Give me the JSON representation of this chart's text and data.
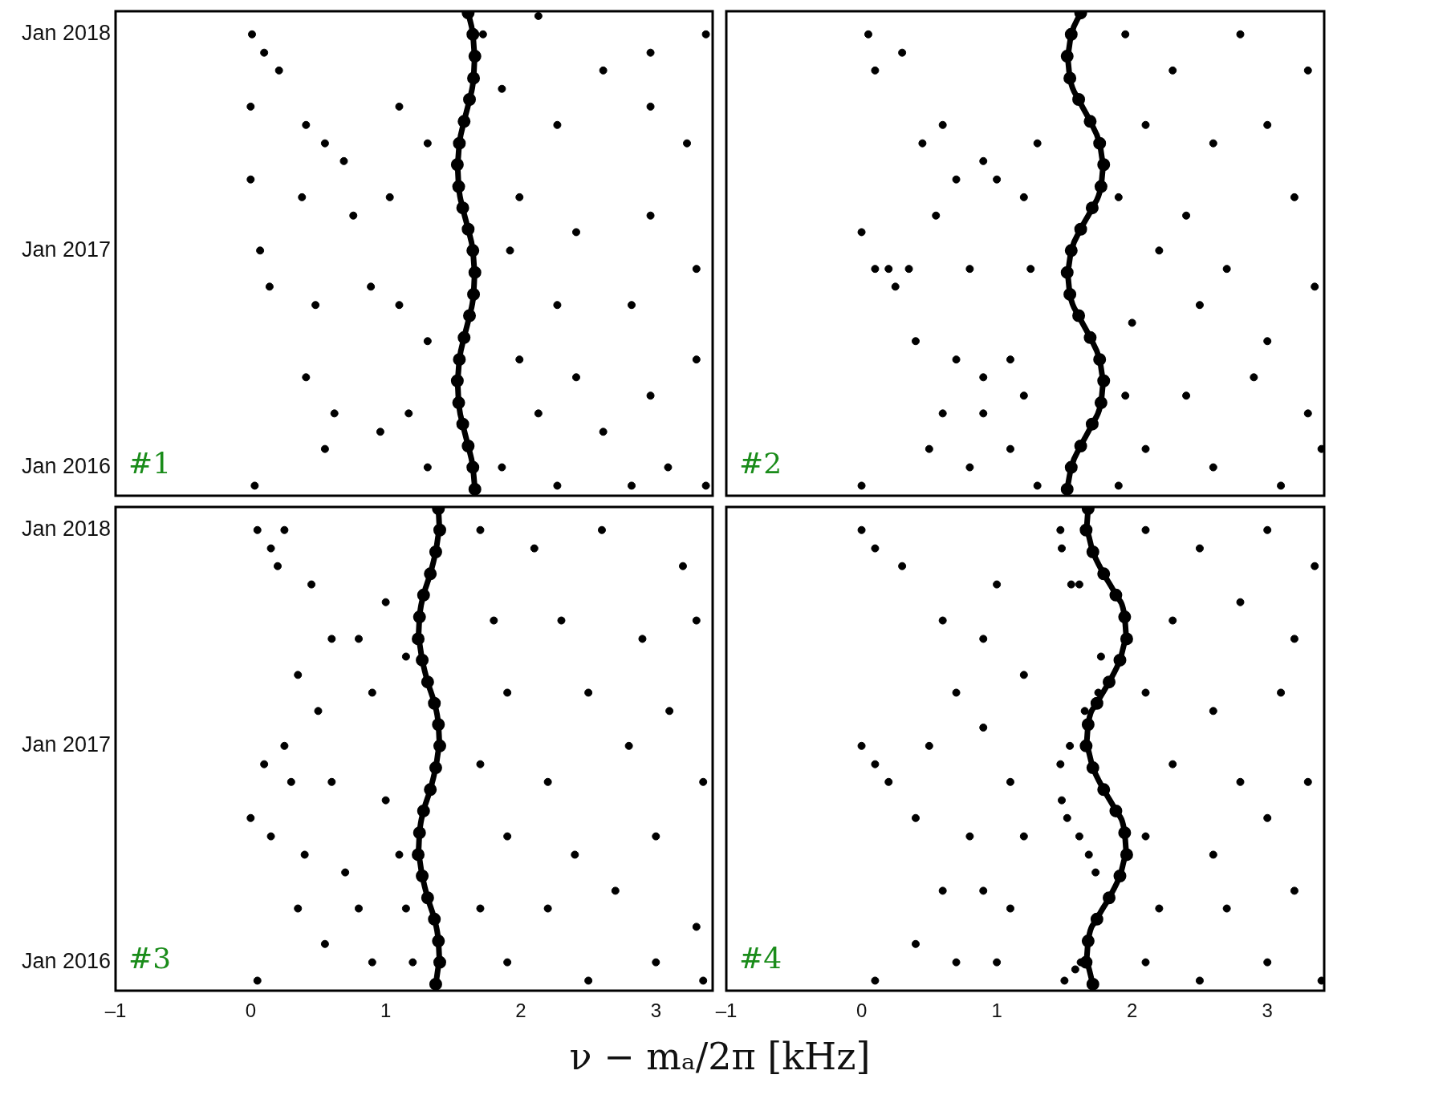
{
  "chart_data": [
    {
      "type": "scatter",
      "orientation": "horizontal",
      "marker": "circle",
      "tick_labels": "y",
      "annotations": [
        "#1"
      ],
      "xlim": [
        -1,
        3.42
      ],
      "ylim": [
        "2015-11-14",
        "2018-02-09"
      ],
      "yticks": [
        {
          "value": "2016-01",
          "label": "Jan 2016"
        },
        {
          "value": "2017-01",
          "label": "Jan 2017"
        },
        {
          "value": "2018-01",
          "label": "Jan 2018"
        }
      ],
      "series": [
        {
          "type": "scatter",
          "color": "#000000",
          "values": [
            0.01,
            0.1,
            0.21,
            0.0,
            0.41,
            0.55,
            0.69,
            0.0,
            0.38,
            0.76,
            1.1,
            1.31,
            1.03,
            0.07,
            0.14,
            0.48,
            0.89,
            1.1,
            1.31,
            0.41,
            0.62,
            0.96,
            1.17,
            1.31,
            0.03,
            0.55,
            1.86,
            2.27,
            2.61,
            2.96,
            3.23,
            1.99,
            2.41,
            2.96,
            3.3,
            1.92,
            2.27,
            2.82,
            1.99,
            2.41,
            2.96,
            3.3,
            2.13,
            2.61,
            3.09,
            1.86,
            2.27,
            2.82,
            3.37,
            1.72,
            2.13,
            2.96,
            3.37
          ],
          "x": [
            "2018-01",
            "2017-12",
            "2017-11",
            "2017-09",
            "2017-08",
            "2017-07",
            "2017-06",
            "2017-05",
            "2017-04",
            "2017-03",
            "2017-09",
            "2017-07",
            "2017-04",
            "2017-01",
            "2016-11",
            "2016-10",
            "2016-11",
            "2016-10",
            "2016-08",
            "2016-06",
            "2016-04",
            "2016-03",
            "2016-04",
            "2016-01",
            "2015-12",
            "2016-02",
            "2017-10",
            "2017-08",
            "2017-11",
            "2017-09",
            "2017-07",
            "2017-04",
            "2017-02",
            "2017-03",
            "2016-12",
            "2017-01",
            "2016-10",
            "2016-10",
            "2016-07",
            "2016-06",
            "2016-05",
            "2016-07",
            "2016-04",
            "2016-03",
            "2016-01",
            "2016-01",
            "2015-12",
            "2015-12",
            "2015-12",
            "2018-01",
            "2018-02",
            "2017-12",
            "2018-01"
          ]
        },
        {
          "type": "line",
          "color": "#000000",
          "values": [
            1.66,
            1.645,
            1.61,
            1.57,
            1.54,
            1.53,
            1.545,
            1.58,
            1.62,
            1.65,
            1.66,
            1.645,
            1.61,
            1.57,
            1.54,
            1.53,
            1.545,
            1.58,
            1.62,
            1.65,
            1.66,
            1.645,
            1.61
          ],
          "x": [
            "2015-11-25",
            "2016-01-01",
            "2016-02-06",
            "2016-03-14",
            "2016-04-19",
            "2016-05-26",
            "2016-07-01",
            "2016-08-07",
            "2016-09-13",
            "2016-10-19",
            "2016-11-25",
            "2017-01-01",
            "2017-02-06",
            "2017-03-14",
            "2017-04-19",
            "2017-05-26",
            "2017-07-01",
            "2017-08-07",
            "2017-09-13",
            "2017-10-19",
            "2017-11-25",
            "2018-01-01",
            "2018-02-06"
          ]
        }
      ]
    },
    {
      "type": "scatter",
      "orientation": "horizontal",
      "marker": "circle",
      "tick_labels": false,
      "annotations": [
        "#2"
      ],
      "xlim": [
        -1,
        3.42
      ],
      "ylim": [
        "2015-11-14",
        "2018-02-09"
      ],
      "series": [
        {
          "type": "scatter",
          "color": "#000000",
          "values": [
            0.05,
            0.1,
            0.3,
            0.45,
            0.6,
            0.7,
            0.9,
            1.0,
            1.2,
            1.3,
            0.55,
            0.0,
            0.1,
            0.2,
            0.35,
            0.25,
            0.8,
            1.25,
            0.4,
            0.7,
            0.9,
            1.1,
            0.6,
            0.9,
            1.2,
            0.5,
            0.8,
            1.1,
            0.0,
            1.3,
            1.95,
            2.3,
            2.8,
            3.3,
            2.1,
            2.6,
            3.0,
            1.9,
            2.4,
            3.2,
            2.2,
            2.7,
            3.35,
            2.0,
            2.5,
            3.0,
            1.95,
            2.4,
            2.9,
            3.3,
            2.1,
            2.6,
            3.1,
            1.9,
            3.4
          ],
          "x": [
            "2018-01",
            "2017-11",
            "2017-12",
            "2017-07",
            "2017-08",
            "2017-05",
            "2017-06",
            "2017-05",
            "2017-04",
            "2017-07",
            "2017-03",
            "2017-02",
            "2016-12",
            "2016-12",
            "2016-12",
            "2016-11",
            "2016-12",
            "2016-12",
            "2016-08",
            "2016-07",
            "2016-06",
            "2016-07",
            "2016-04",
            "2016-04",
            "2016-05",
            "2016-02",
            "2016-01",
            "2016-02",
            "2015-12",
            "2015-12",
            "2018-01",
            "2017-11",
            "2018-01",
            "2017-11",
            "2017-08",
            "2017-07",
            "2017-08",
            "2017-04",
            "2017-03",
            "2017-04",
            "2017-01",
            "2016-12",
            "2016-11",
            "2016-09",
            "2016-10",
            "2016-08",
            "2016-05",
            "2016-05",
            "2016-06",
            "2016-04",
            "2016-02",
            "2016-01",
            "2015-12",
            "2015-12",
            "2016-02"
          ]
        },
        {
          "type": "line",
          "color": "#000000",
          "values": [
            1.52,
            1.55,
            1.62,
            1.705,
            1.77,
            1.79,
            1.76,
            1.69,
            1.605,
            1.54,
            1.52,
            1.55,
            1.62,
            1.705,
            1.77,
            1.79,
            1.76,
            1.69,
            1.605,
            1.54,
            1.52,
            1.55,
            1.62
          ],
          "x": [
            "2015-11-25",
            "2016-01-01",
            "2016-02-06",
            "2016-03-14",
            "2016-04-19",
            "2016-05-26",
            "2016-07-01",
            "2016-08-07",
            "2016-09-13",
            "2016-10-19",
            "2016-11-25",
            "2017-01-01",
            "2017-02-06",
            "2017-03-14",
            "2017-04-19",
            "2017-05-26",
            "2017-07-01",
            "2017-08-07",
            "2017-09-13",
            "2017-10-19",
            "2017-11-25",
            "2018-01-01",
            "2018-02-06"
          ]
        }
      ]
    },
    {
      "type": "scatter",
      "orientation": "horizontal",
      "marker": "circle",
      "annotations": [
        "#3"
      ],
      "xlabel": "ν − mₐ/2π [kHz]",
      "xlim": [
        -1,
        3.42
      ],
      "xticks": [
        {
          "value": -1,
          "label": "–1"
        },
        0,
        1,
        2,
        3
      ],
      "ylim": [
        "2015-11-14",
        "2018-02-09"
      ],
      "yticks": [
        {
          "value": "2016-01",
          "label": "Jan 2016"
        },
        {
          "value": "2017-01",
          "label": "Jan 2017"
        },
        {
          "value": "2018-01",
          "label": "Jan 2018"
        }
      ],
      "series": [
        {
          "type": "scatter",
          "color": "#000000",
          "values": [
            0.05,
            0.15,
            0.25,
            0.2,
            0.45,
            0.6,
            0.35,
            0.8,
            1.0,
            1.15,
            0.5,
            0.9,
            0.1,
            0.25,
            0.3,
            0.0,
            0.15,
            0.6,
            1.0,
            0.4,
            0.7,
            1.1,
            0.35,
            0.8,
            1.15,
            0.55,
            0.9,
            1.2,
            0.05,
            1.7,
            2.1,
            2.6,
            3.2,
            1.8,
            2.3,
            2.9,
            3.3,
            1.9,
            2.5,
            3.1,
            1.7,
            2.2,
            2.8,
            3.35,
            1.9,
            2.4,
            3.0,
            1.7,
            2.2,
            2.7,
            3.3,
            1.9,
            2.5,
            3.0,
            3.35
          ],
          "x": [
            "2018-01",
            "2017-12",
            "2018-01",
            "2017-11",
            "2017-10",
            "2017-07",
            "2017-05",
            "2017-07",
            "2017-09",
            "2017-06",
            "2017-03",
            "2017-04",
            "2016-12",
            "2017-01",
            "2016-11",
            "2016-09",
            "2016-08",
            "2016-11",
            "2016-10",
            "2016-07",
            "2016-06",
            "2016-07",
            "2016-04",
            "2016-04",
            "2016-04",
            "2016-02",
            "2016-01",
            "2016-01",
            "2015-12",
            "2018-01",
            "2017-12",
            "2018-01",
            "2017-11",
            "2017-08",
            "2017-08",
            "2017-07",
            "2017-08",
            "2017-04",
            "2017-04",
            "2017-03",
            "2016-12",
            "2016-11",
            "2017-01",
            "2016-11",
            "2016-08",
            "2016-07",
            "2016-08",
            "2016-04",
            "2016-04",
            "2016-05",
            "2016-03",
            "2016-01",
            "2015-12",
            "2016-01",
            "2015-12"
          ]
        },
        {
          "type": "line",
          "color": "#000000",
          "values": [
            1.37,
            1.4,
            1.39,
            1.36,
            1.31,
            1.27,
            1.24,
            1.25,
            1.28,
            1.33,
            1.37,
            1.4,
            1.39,
            1.36,
            1.31,
            1.27,
            1.24,
            1.25,
            1.28,
            1.33,
            1.37,
            1.4,
            1.39
          ],
          "x": [
            "2015-11-25",
            "2016-01-01",
            "2016-02-06",
            "2016-03-14",
            "2016-04-19",
            "2016-05-26",
            "2016-07-01",
            "2016-08-07",
            "2016-09-13",
            "2016-10-19",
            "2016-11-25",
            "2017-01-01",
            "2017-02-06",
            "2017-03-14",
            "2017-04-19",
            "2017-05-26",
            "2017-07-01",
            "2017-08-07",
            "2017-09-13",
            "2017-10-19",
            "2017-11-25",
            "2018-01-01",
            "2018-02-06"
          ]
        }
      ]
    },
    {
      "type": "scatter",
      "orientation": "horizontal",
      "marker": "circle",
      "tick_labels": "x",
      "annotations": [
        "#4"
      ],
      "xlim": [
        -1,
        3.42
      ],
      "xticks": [
        {
          "value": -1,
          "label": "–1"
        },
        0,
        1,
        2,
        3
      ],
      "ylim": [
        "2015-11-14",
        "2018-02-09"
      ],
      "series": [
        {
          "type": "scatter",
          "color": "#000000",
          "values": [
            1.47,
            1.48,
            1.55,
            1.61,
            1.77,
            1.75,
            1.65,
            1.54,
            1.47,
            1.48,
            1.52,
            1.61,
            1.68,
            1.73,
            1.62,
            1.58,
            1.5,
            0.0,
            0.1,
            0.3,
            0.6,
            0.9,
            1.0,
            1.2,
            0.7,
            0.0,
            0.1,
            0.2,
            0.5,
            0.9,
            1.1,
            0.4,
            0.8,
            1.2,
            0.6,
            0.9,
            1.1,
            0.4,
            0.7,
            1.0,
            0.1,
            2.1,
            2.5,
            3.0,
            3.35,
            2.3,
            2.8,
            3.2,
            2.1,
            2.6,
            3.1,
            2.3,
            2.8,
            3.3,
            2.1,
            2.6,
            3.0,
            2.2,
            2.7,
            3.2,
            2.1,
            2.5,
            3.0,
            3.4
          ],
          "x": [
            "2018-01",
            "2017-12",
            "2017-10",
            "2017-10",
            "2017-06",
            "2017-04",
            "2017-03",
            "2017-01",
            "2016-12",
            "2016-10",
            "2016-09",
            "2016-08",
            "2016-07",
            "2016-06",
            "2016-01",
            "2015-12-20",
            "2015-12-01",
            "2018-01",
            "2017-12",
            "2017-11",
            "2017-08",
            "2017-07",
            "2017-10",
            "2017-05",
            "2017-04",
            "2017-01",
            "2016-12",
            "2016-11",
            "2017-01",
            "2017-02",
            "2016-11",
            "2016-09",
            "2016-08",
            "2016-08",
            "2016-05",
            "2016-05",
            "2016-04",
            "2016-02",
            "2016-01",
            "2016-01",
            "2015-12",
            "2018-01",
            "2017-12",
            "2018-01",
            "2017-11",
            "2017-08",
            "2017-09",
            "2017-07",
            "2017-04",
            "2017-03",
            "2017-04",
            "2016-12",
            "2016-11",
            "2016-11",
            "2016-08",
            "2016-07",
            "2016-09",
            "2016-04",
            "2016-04",
            "2016-05",
            "2016-01",
            "2015-12",
            "2016-01",
            "2015-12"
          ]
        },
        {
          "type": "line",
          "color": "#000000",
          "values": [
            1.71,
            1.66,
            1.675,
            1.74,
            1.83,
            1.91,
            1.96,
            1.945,
            1.88,
            1.79,
            1.71,
            1.66,
            1.675,
            1.74,
            1.83,
            1.91,
            1.96,
            1.945,
            1.88,
            1.79,
            1.71,
            1.66,
            1.675
          ],
          "x": [
            "2015-11-25",
            "2016-01-01",
            "2016-02-06",
            "2016-03-14",
            "2016-04-19",
            "2016-05-26",
            "2016-07-01",
            "2016-08-07",
            "2016-09-13",
            "2016-10-19",
            "2016-11-25",
            "2017-01-01",
            "2017-02-06",
            "2017-03-14",
            "2017-04-19",
            "2017-05-26",
            "2017-07-01",
            "2017-08-07",
            "2017-09-13",
            "2017-10-19",
            "2017-11-25",
            "2018-01-01",
            "2018-02-06"
          ]
        }
      ]
    }
  ]
}
